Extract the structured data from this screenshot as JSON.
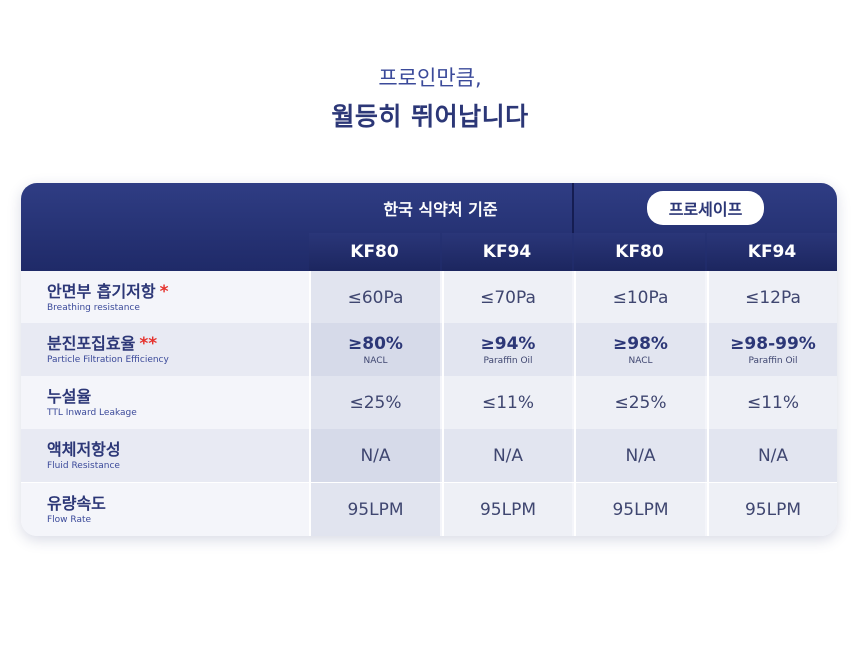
{
  "heading": {
    "sub": "프로인만큼,",
    "main": "월등히 뛰어납니다"
  },
  "table": {
    "groups": [
      {
        "label": "한국 식약처 기준",
        "style": "plain"
      },
      {
        "label": "프로세이프",
        "style": "pill"
      }
    ],
    "columns": [
      "KF80",
      "KF94",
      "KF80",
      "KF94"
    ],
    "rows": [
      {
        "label_ko": "안면부 흡기저항",
        "mark": "*",
        "label_en": "Breathing resistance",
        "cells": [
          {
            "value": "≤60Pa",
            "note": ""
          },
          {
            "value": "≤70Pa",
            "note": ""
          },
          {
            "value": "≤10Pa",
            "note": ""
          },
          {
            "value": "≤12Pa",
            "note": ""
          }
        ]
      },
      {
        "label_ko": "분진포집효율",
        "mark": "**",
        "label_en": "Particle Filtration Efficiency",
        "cells": [
          {
            "value": "≥80%",
            "note": "NACL"
          },
          {
            "value": "≥94%",
            "note": "Paraffin Oil"
          },
          {
            "value": "≥98%",
            "note": "NACL"
          },
          {
            "value": "≥98-99%",
            "note": "Paraffin Oil"
          }
        ]
      },
      {
        "label_ko": "누설율",
        "mark": "",
        "label_en": "TTL Inward Leakage",
        "cells": [
          {
            "value": "≤25%",
            "note": ""
          },
          {
            "value": "≤11%",
            "note": ""
          },
          {
            "value": "≤25%",
            "note": ""
          },
          {
            "value": "≤11%",
            "note": ""
          }
        ]
      },
      {
        "label_ko": "액체저항성",
        "mark": "",
        "label_en": "Fluid Resistance",
        "cells": [
          {
            "value": "N/A",
            "note": ""
          },
          {
            "value": "N/A",
            "note": ""
          },
          {
            "value": "N/A",
            "note": ""
          },
          {
            "value": "N/A",
            "note": ""
          }
        ]
      },
      {
        "label_ko": "유량속도",
        "mark": "",
        "label_en": "Flow Rate",
        "cells": [
          {
            "value": "95LPM",
            "note": ""
          },
          {
            "value": "95LPM",
            "note": ""
          },
          {
            "value": "95LPM",
            "note": ""
          },
          {
            "value": "95LPM",
            "note": ""
          }
        ]
      }
    ]
  },
  "colors": {
    "header_navy": "#24306f",
    "mark_red": "#e5322d",
    "row_light": "#f3f4f9",
    "row_mid": "#e6e8f2",
    "cell_highlight": "#dde1ee"
  }
}
